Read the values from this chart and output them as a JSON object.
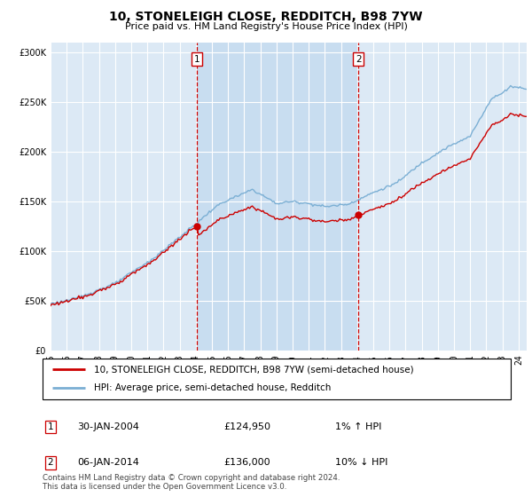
{
  "title": "10, STONELEIGH CLOSE, REDDITCH, B98 7YW",
  "subtitle": "Price paid vs. HM Land Registry's House Price Index (HPI)",
  "legend_line1": "10, STONELEIGH CLOSE, REDDITCH, B98 7YW (semi-detached house)",
  "legend_line2": "HPI: Average price, semi-detached house, Redditch",
  "table_rows": [
    {
      "label": "1",
      "date": "30-JAN-2004",
      "price": "£124,950",
      "change": "1% ↑ HPI"
    },
    {
      "label": "2",
      "date": "06-JAN-2014",
      "price": "£136,000",
      "change": "10% ↓ HPI"
    }
  ],
  "footnote": "Contains HM Land Registry data © Crown copyright and database right 2024.\nThis data is licensed under the Open Government Licence v3.0.",
  "sale1_year": 2004,
  "sale1_month": 1,
  "sale1_price": 124950,
  "sale2_year": 2014,
  "sale2_month": 1,
  "sale2_price": 136000,
  "hpi_color": "#7bafd4",
  "price_color": "#cc0000",
  "dashed_color": "#cc0000",
  "plot_bg": "#dce9f5",
  "between_bg": "#c8ddf0",
  "ylim_min": 0,
  "ylim_max": 310000,
  "xstart": 1995,
  "xend": 2024.5
}
